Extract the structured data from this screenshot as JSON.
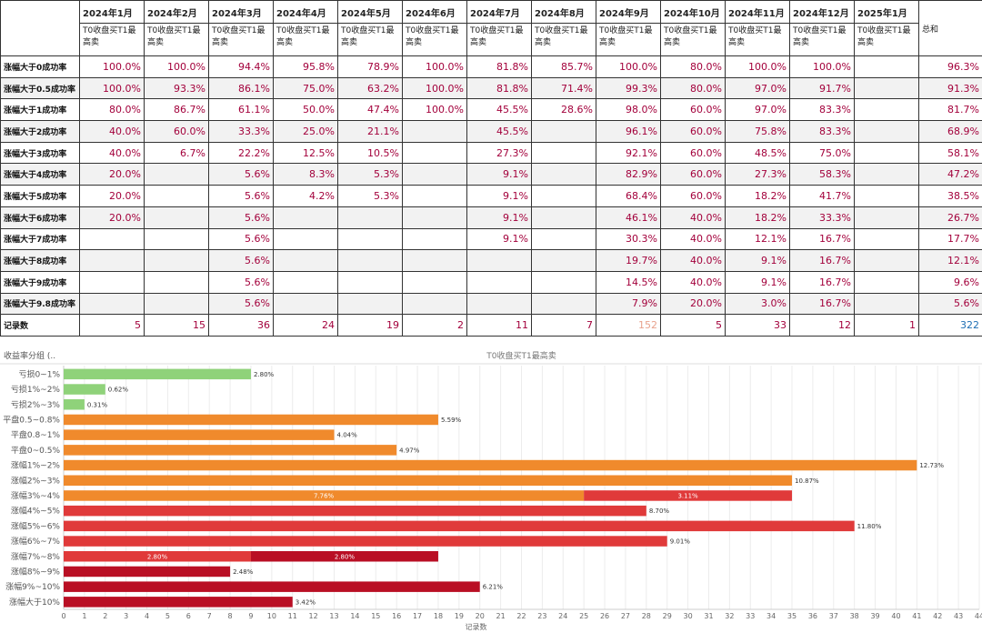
{
  "table": {
    "months": [
      "2024年1月",
      "2024年2月",
      "2024年3月",
      "2024年4月",
      "2024年5月",
      "2024年6月",
      "2024年7月",
      "2024年8月",
      "2024年9月",
      "2024年10月",
      "2024年11月",
      "2024年12月",
      "2025年1月"
    ],
    "measure": "T0收盘买T1最高卖",
    "total_label": "总和",
    "rows": [
      {
        "label": "涨幅大于0成功率",
        "values": [
          "100.0%",
          "100.0%",
          "94.4%",
          "95.8%",
          "78.9%",
          "100.0%",
          "81.8%",
          "85.7%",
          "100.0%",
          "80.0%",
          "100.0%",
          "100.0%",
          ""
        ],
        "total": "96.3%"
      },
      {
        "label": "涨幅大于0.5成功率",
        "values": [
          "100.0%",
          "93.3%",
          "86.1%",
          "75.0%",
          "63.2%",
          "100.0%",
          "81.8%",
          "71.4%",
          "99.3%",
          "80.0%",
          "97.0%",
          "91.7%",
          ""
        ],
        "total": "91.3%"
      },
      {
        "label": "涨幅大于1成功率",
        "values": [
          "80.0%",
          "86.7%",
          "61.1%",
          "50.0%",
          "47.4%",
          "100.0%",
          "45.5%",
          "28.6%",
          "98.0%",
          "60.0%",
          "97.0%",
          "83.3%",
          ""
        ],
        "total": "81.7%"
      },
      {
        "label": "涨幅大于2成功率",
        "values": [
          "40.0%",
          "60.0%",
          "33.3%",
          "25.0%",
          "21.1%",
          "",
          "45.5%",
          "",
          "96.1%",
          "60.0%",
          "75.8%",
          "83.3%",
          ""
        ],
        "total": "68.9%"
      },
      {
        "label": "涨幅大于3成功率",
        "values": [
          "40.0%",
          "6.7%",
          "22.2%",
          "12.5%",
          "10.5%",
          "",
          "27.3%",
          "",
          "92.1%",
          "60.0%",
          "48.5%",
          "75.0%",
          ""
        ],
        "total": "58.1%"
      },
      {
        "label": "涨幅大于4成功率",
        "values": [
          "20.0%",
          "",
          "5.6%",
          "8.3%",
          "5.3%",
          "",
          "9.1%",
          "",
          "82.9%",
          "60.0%",
          "27.3%",
          "58.3%",
          ""
        ],
        "total": "47.2%"
      },
      {
        "label": "涨幅大于5成功率",
        "values": [
          "20.0%",
          "",
          "5.6%",
          "4.2%",
          "5.3%",
          "",
          "9.1%",
          "",
          "68.4%",
          "60.0%",
          "18.2%",
          "41.7%",
          ""
        ],
        "total": "38.5%"
      },
      {
        "label": "涨幅大于6成功率",
        "values": [
          "20.0%",
          "",
          "5.6%",
          "",
          "",
          "",
          "9.1%",
          "",
          "46.1%",
          "40.0%",
          "18.2%",
          "33.3%",
          ""
        ],
        "total": "26.7%"
      },
      {
        "label": "涨幅大于7成功率",
        "values": [
          "",
          "",
          "5.6%",
          "",
          "",
          "",
          "9.1%",
          "",
          "30.3%",
          "40.0%",
          "12.1%",
          "16.7%",
          ""
        ],
        "total": "17.7%"
      },
      {
        "label": "涨幅大于8成功率",
        "values": [
          "",
          "",
          "5.6%",
          "",
          "",
          "",
          "",
          "",
          "19.7%",
          "40.0%",
          "9.1%",
          "16.7%",
          ""
        ],
        "total": "12.1%"
      },
      {
        "label": "涨幅大于9成功率",
        "values": [
          "",
          "",
          "5.6%",
          "",
          "",
          "",
          "",
          "",
          "14.5%",
          "40.0%",
          "9.1%",
          "16.7%",
          ""
        ],
        "total": "9.6%"
      },
      {
        "label": "涨幅大于9.8成功率",
        "values": [
          "",
          "",
          "5.6%",
          "",
          "",
          "",
          "",
          "",
          "7.9%",
          "20.0%",
          "3.0%",
          "16.7%",
          ""
        ],
        "total": "5.6%"
      }
    ],
    "count_row": {
      "label": "记录数",
      "values": [
        "5",
        "15",
        "36",
        "24",
        "19",
        "2",
        "11",
        "7",
        "152",
        "5",
        "33",
        "12",
        "1"
      ],
      "total": "322"
    },
    "colors": {
      "value": "#a3003b",
      "count_light": "#e8a28d",
      "total_count": "#1f6fb4"
    }
  },
  "chart_data": {
    "type": "bar",
    "orientation": "horizontal",
    "stacked": true,
    "row_header": "收益率分组 (..",
    "title": "T0收盘买T1最高卖",
    "xlabel": "记录数",
    "xlim": [
      0,
      44
    ],
    "xticks": [
      0,
      1,
      2,
      3,
      4,
      5,
      6,
      7,
      8,
      9,
      10,
      11,
      12,
      13,
      14,
      15,
      16,
      17,
      18,
      19,
      20,
      21,
      22,
      23,
      24,
      25,
      26,
      27,
      28,
      29,
      30,
      31,
      32,
      33,
      34,
      35,
      36,
      37,
      38,
      39,
      40,
      41,
      42,
      43,
      44
    ],
    "grid": true,
    "colors": {
      "green": "#8fd27a",
      "orange": "#f08a2c",
      "red": "#e03a3a",
      "darkred": "#b90f24"
    },
    "categories": [
      "亏损0~1%",
      "亏损1%~2%",
      "亏损2%~3%",
      "平盘0.5~0.8%",
      "平盘0.8~1%",
      "平盘0~0.5%",
      "涨幅1%~2%",
      "涨幅2%~3%",
      "涨幅3%~4%",
      "涨幅4%~5%",
      "涨幅5%~6%",
      "涨幅6%~7%",
      "涨幅7%~8%",
      "涨幅8%~9%",
      "涨幅9%~10%",
      "涨幅大于10%"
    ],
    "bars": [
      [
        {
          "value": 9,
          "label": "2.80%",
          "color": "green"
        }
      ],
      [
        {
          "value": 2,
          "label": "0.62%",
          "color": "green"
        }
      ],
      [
        {
          "value": 1,
          "label": "0.31%",
          "color": "green"
        }
      ],
      [
        {
          "value": 18,
          "label": "5.59%",
          "color": "orange"
        }
      ],
      [
        {
          "value": 13,
          "label": "4.04%",
          "color": "orange"
        }
      ],
      [
        {
          "value": 16,
          "label": "4.97%",
          "color": "orange"
        }
      ],
      [
        {
          "value": 41,
          "label": "12.73%",
          "color": "orange"
        }
      ],
      [
        {
          "value": 35,
          "label": "10.87%",
          "color": "orange"
        }
      ],
      [
        {
          "value": 25,
          "label": "7.76%",
          "color": "orange",
          "inside": true
        },
        {
          "value": 10,
          "label": "3.11%",
          "color": "red",
          "inside": true
        }
      ],
      [
        {
          "value": 28,
          "label": "8.70%",
          "color": "red"
        }
      ],
      [
        {
          "value": 38,
          "label": "11.80%",
          "color": "red"
        }
      ],
      [
        {
          "value": 29,
          "label": "9.01%",
          "color": "red"
        }
      ],
      [
        {
          "value": 9,
          "label": "2.80%",
          "color": "red",
          "inside": true
        },
        {
          "value": 9,
          "label": "2.80%",
          "color": "darkred",
          "inside": true
        }
      ],
      [
        {
          "value": 8,
          "label": "2.48%",
          "color": "darkred"
        }
      ],
      [
        {
          "value": 20,
          "label": "6.21%",
          "color": "darkred"
        }
      ],
      [
        {
          "value": 11,
          "label": "3.42%",
          "color": "darkred"
        }
      ]
    ]
  }
}
